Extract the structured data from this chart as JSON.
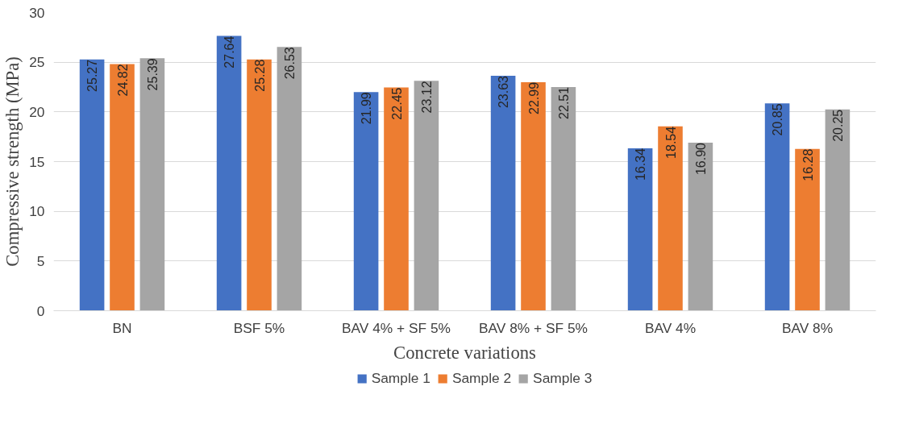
{
  "chart_data": {
    "type": "bar",
    "xlabel": "Concrete variations",
    "ylabel": "Compressive strength (MPa)",
    "categories": [
      "BN",
      "BSF 5%",
      "BAV 4% + SF 5%",
      "BAV 8% + SF 5%",
      "BAV 4%",
      "BAV 8%"
    ],
    "series": [
      {
        "name": "Sample 1",
        "color": "#4472c4",
        "values": [
          25.27,
          27.64,
          21.99,
          23.63,
          16.34,
          20.85
        ],
        "value_labels": [
          "25.27",
          "27.64",
          "21.99",
          "23.63",
          "16.34",
          "20.85"
        ]
      },
      {
        "name": "Sample 2",
        "color": "#ed7d31",
        "values": [
          24.82,
          25.28,
          22.45,
          22.99,
          18.54,
          16.28
        ],
        "value_labels": [
          "24.82",
          "25.28",
          "22.45",
          "22.99",
          "18.54",
          "16.28"
        ]
      },
      {
        "name": "Sample 3",
        "color": "#a5a5a5",
        "values": [
          25.39,
          26.53,
          23.12,
          22.51,
          16.9,
          20.25
        ],
        "value_labels": [
          "25.39",
          "26.53",
          "23.12",
          "22.51",
          "16.90",
          "20.25"
        ]
      }
    ],
    "ylim": [
      0,
      30
    ],
    "yticks": [
      0,
      5,
      10,
      15,
      20,
      25,
      30
    ],
    "grid": "y",
    "legend": "bottom"
  }
}
